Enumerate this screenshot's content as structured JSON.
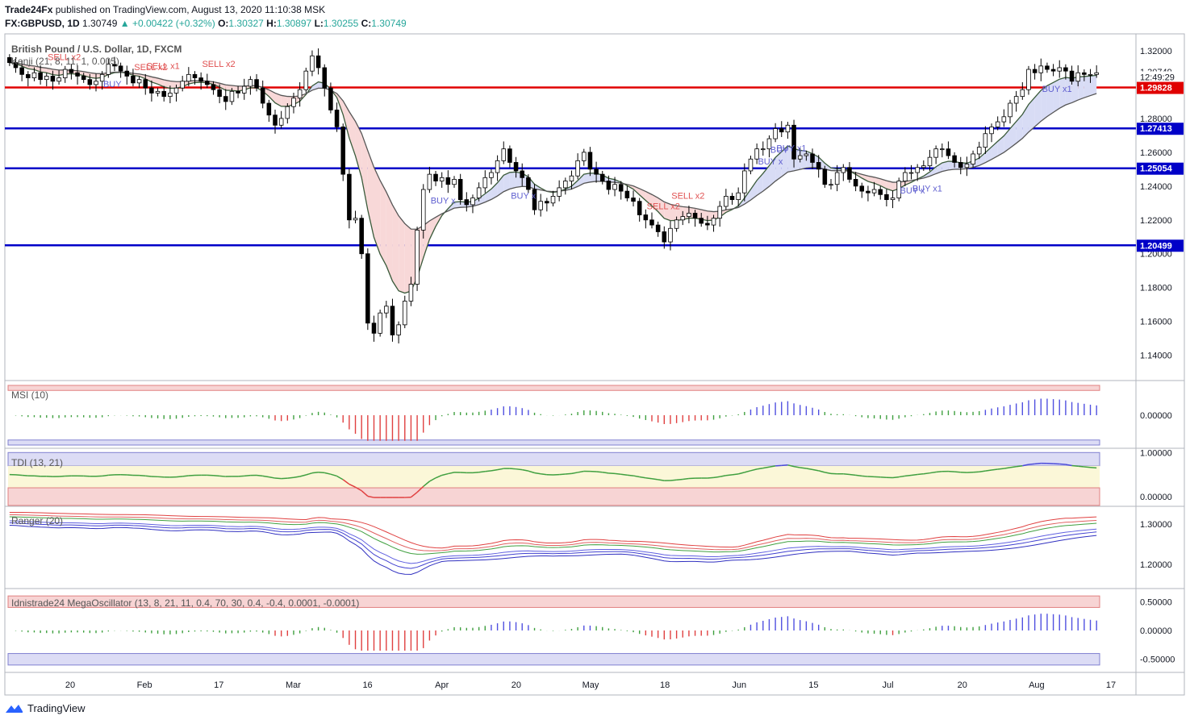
{
  "header": {
    "publisher": "Trade24Fx",
    "published_text": "published on TradingView.com, August 13, 2020 11:10:38 MSK",
    "symbol": "FX:GBPUSD, 1D",
    "last": "1.30749",
    "change": "▲ +0.00422 (+0.32%)",
    "open_label": "O:",
    "open": "1.30327",
    "high_label": "H:",
    "high": "1.30897",
    "low_label": "L:",
    "low": "1.30255",
    "close_label": "C:",
    "close": "1.30749"
  },
  "footer": {
    "brand": "TradingView",
    "logo_icon": "tradingview-logo-icon"
  },
  "colors": {
    "up": "#26a69a",
    "red_line": "#e00000",
    "blue_line": "#0000c8",
    "buy": "#5050d0",
    "sell": "#e05050"
  },
  "chart_data": [
    {
      "type": "candlestick",
      "title": "British Pound / U.S. Dollar, 1D, FXCM",
      "indicator": "Kenji (21, 8, 11, 1, 0.005)",
      "ylim": [
        1.126,
        1.33
      ],
      "y_ticks": [
        1.14,
        1.16,
        1.18,
        1.2,
        1.22,
        1.24,
        1.26,
        1.28,
        1.3,
        1.32
      ],
      "x_tick_labels": [
        "20",
        "Feb",
        "17",
        "Mar",
        "16",
        "Apr",
        "20",
        "May",
        "18",
        "Jun",
        "15",
        "Jul",
        "20",
        "Aug",
        "17"
      ],
      "price_tags": [
        {
          "label": "1.30749",
          "value": 1.30749,
          "style": "current"
        },
        {
          "label": "12:49:29",
          "value": 1.3045,
          "style": "timer"
        },
        {
          "label": "1.29828",
          "value": 1.29828,
          "style": "red"
        },
        {
          "label": "1.27413",
          "value": 1.27413,
          "style": "blue"
        },
        {
          "label": "1.25054",
          "value": 1.25054,
          "style": "blue"
        },
        {
          "label": "1.20499",
          "value": 1.20499,
          "style": "blue"
        }
      ],
      "horizontal_levels": [
        {
          "value": 1.29828,
          "color": "red"
        },
        {
          "value": 1.27413,
          "color": "blue"
        },
        {
          "value": 1.25054,
          "color": "blue"
        },
        {
          "value": 1.20499,
          "color": "blue"
        }
      ],
      "closes": [
        1.313,
        1.31,
        1.306,
        1.304,
        1.307,
        1.303,
        1.305,
        1.302,
        1.304,
        1.309,
        1.307,
        1.305,
        1.303,
        1.3,
        1.302,
        1.306,
        1.312,
        1.311,
        1.308,
        1.305,
        1.301,
        1.303,
        1.298,
        1.295,
        1.296,
        1.293,
        1.295,
        1.298,
        1.302,
        1.306,
        1.304,
        1.302,
        1.3,
        1.297,
        1.293,
        1.29,
        1.296,
        1.295,
        1.299,
        1.303,
        1.298,
        1.289,
        1.282,
        1.276,
        1.28,
        1.287,
        1.292,
        1.297,
        1.308,
        1.317,
        1.31,
        1.298,
        1.285,
        1.275,
        1.247,
        1.22,
        1.221,
        1.2,
        1.159,
        1.153,
        1.165,
        1.169,
        1.152,
        1.158,
        1.172,
        1.182,
        1.214,
        1.238,
        1.247,
        1.243,
        1.245,
        1.241,
        1.244,
        1.232,
        1.229,
        1.233,
        1.239,
        1.245,
        1.248,
        1.255,
        1.262,
        1.254,
        1.249,
        1.245,
        1.238,
        1.226,
        1.231,
        1.23,
        1.234,
        1.239,
        1.243,
        1.246,
        1.255,
        1.26,
        1.25,
        1.247,
        1.243,
        1.238,
        1.241,
        1.237,
        1.233,
        1.231,
        1.223,
        1.22,
        1.217,
        1.213,
        1.207,
        1.215,
        1.22,
        1.222,
        1.224,
        1.221,
        1.218,
        1.217,
        1.221,
        1.228,
        1.234,
        1.232,
        1.236,
        1.249,
        1.256,
        1.262,
        1.262,
        1.268,
        1.274,
        1.272,
        1.276,
        1.256,
        1.258,
        1.259,
        1.254,
        1.25,
        1.241,
        1.241,
        1.248,
        1.251,
        1.244,
        1.24,
        1.237,
        1.236,
        1.238,
        1.235,
        1.232,
        1.233,
        1.243,
        1.248,
        1.248,
        1.251,
        1.252,
        1.257,
        1.262,
        1.262,
        1.258,
        1.254,
        1.251,
        1.253,
        1.259,
        1.263,
        1.271,
        1.275,
        1.278,
        1.281,
        1.289,
        1.293,
        1.297,
        1.309,
        1.307,
        1.311,
        1.309,
        1.308,
        1.31,
        1.308,
        1.302,
        1.307,
        1.306,
        1.306,
        1.307
      ],
      "signals": [
        {
          "label": "SELL x2",
          "type": "sell",
          "index": 8
        },
        {
          "label": "SELL x1",
          "type": "sell",
          "index": 24
        },
        {
          "label": "SELL x2",
          "type": "sell",
          "index": 22
        },
        {
          "label": "SELL x2",
          "type": "sell",
          "index": 33
        },
        {
          "label": "BUY",
          "type": "buy",
          "index": 17
        },
        {
          "label": "BUY x",
          "type": "buy",
          "index": 70
        },
        {
          "label": "BUY x",
          "type": "buy",
          "index": 83
        },
        {
          "label": "SELL x2",
          "type": "sell",
          "index": 105
        },
        {
          "label": "SELL x2",
          "type": "sell",
          "index": 109
        },
        {
          "label": "BUY x",
          "type": "buy",
          "index": 123
        },
        {
          "label": "BUY",
          "type": "buy",
          "index": 125
        },
        {
          "label": "BUY x1",
          "type": "buy",
          "index": 126
        },
        {
          "label": "BUY x",
          "type": "buy",
          "index": 146
        },
        {
          "label": "BUY x1",
          "type": "buy",
          "index": 148
        },
        {
          "label": "BUY x1",
          "type": "buy",
          "index": 169
        }
      ]
    },
    {
      "type": "bar",
      "title": "MSI (10)",
      "ylim": [
        -0.8,
        0.8
      ],
      "y_ticks": [
        0.0
      ],
      "tick_labels": [
        "0.00000"
      ]
    },
    {
      "type": "line",
      "title": "TDI (13, 21)",
      "ylim": [
        -0.22,
        1.06
      ],
      "y_ticks": [
        0.0,
        1.0
      ],
      "tick_labels": [
        "0.00000",
        "1.00000"
      ]
    },
    {
      "type": "line",
      "title": "Ranger (20)",
      "ylim": [
        1.14,
        1.34
      ],
      "y_ticks": [
        1.2,
        1.3
      ],
      "tick_labels": [
        "1.20000",
        "1.30000"
      ]
    },
    {
      "type": "bar",
      "title": "Idnistrade24 MegaOscillator (13, 8, 21, 11, 0.4, 70, 30, 0.4, -0.4, 0.0001, -0.0001)",
      "ylim": [
        -0.7,
        0.7
      ],
      "y_ticks": [
        -0.5,
        0.0,
        0.5
      ],
      "tick_labels": [
        "-0.50000",
        "0.00000",
        "0.50000"
      ]
    }
  ]
}
